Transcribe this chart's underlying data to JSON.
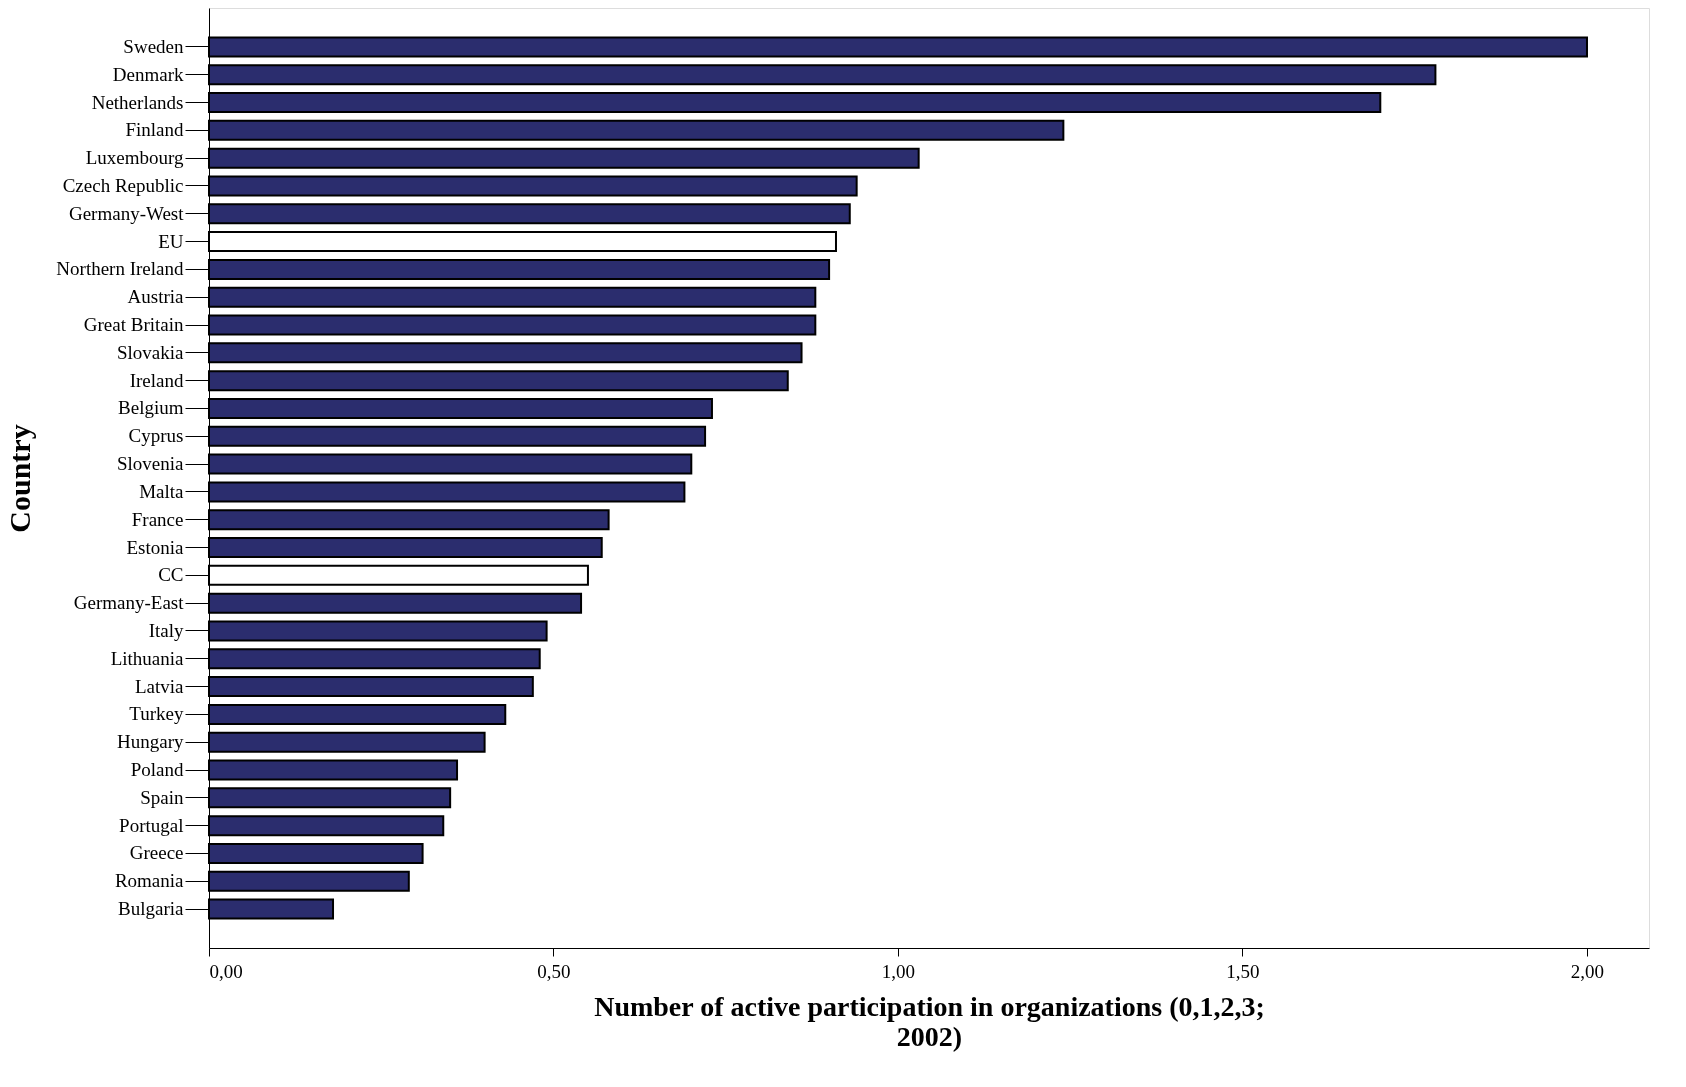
{
  "chart_data": {
    "type": "bar",
    "orientation": "horizontal",
    "xlabel": "Number of active participation in organizations (0,1,2,3; 2002)",
    "ylabel": "Country",
    "categories": [
      "Sweden",
      "Denmark",
      "Netherlands",
      "Finland",
      "Luxembourg",
      "Czech Republic",
      "Germany-West",
      "EU",
      "Northern Ireland",
      "Austria",
      "Great Britain",
      "Slovakia",
      "Ireland",
      "Belgium",
      "Cyprus",
      "Slovenia",
      "Malta",
      "France",
      "Estonia",
      "CC",
      "Germany-East",
      "Italy",
      "Lithuania",
      "Latvia",
      "Turkey",
      "Hungary",
      "Poland",
      "Spain",
      "Portugal",
      "Greece",
      "Romania",
      "Bulgaria"
    ],
    "values": [
      2.0,
      1.78,
      1.7,
      1.24,
      1.03,
      0.94,
      0.93,
      0.91,
      0.9,
      0.88,
      0.88,
      0.86,
      0.84,
      0.73,
      0.72,
      0.7,
      0.69,
      0.58,
      0.57,
      0.55,
      0.54,
      0.49,
      0.48,
      0.47,
      0.43,
      0.4,
      0.36,
      0.35,
      0.34,
      0.31,
      0.29,
      0.18
    ],
    "colors": [
      "#2b2d6e",
      "#2b2d6e",
      "#2b2d6e",
      "#2b2d6e",
      "#2b2d6e",
      "#2b2d6e",
      "#2b2d6e",
      "#ffffff",
      "#2b2d6e",
      "#2b2d6e",
      "#2b2d6e",
      "#2b2d6e",
      "#2b2d6e",
      "#2b2d6e",
      "#2b2d6e",
      "#2b2d6e",
      "#2b2d6e",
      "#2b2d6e",
      "#2b2d6e",
      "#ffffff",
      "#2b2d6e",
      "#2b2d6e",
      "#2b2d6e",
      "#2b2d6e",
      "#2b2d6e",
      "#2b2d6e",
      "#2b2d6e",
      "#2b2d6e",
      "#2b2d6e",
      "#2b2d6e",
      "#2b2d6e",
      "#2b2d6e"
    ],
    "xlim": [
      0,
      2.09
    ],
    "xticks": [
      {
        "value": 0,
        "label": "0,00"
      },
      {
        "value": 0.5,
        "label": "0,50"
      },
      {
        "value": 1,
        "label": "1,00"
      },
      {
        "value": 1.5,
        "label": "1,50"
      },
      {
        "value": 2,
        "label": "2,00"
      }
    ],
    "grid": false
  }
}
